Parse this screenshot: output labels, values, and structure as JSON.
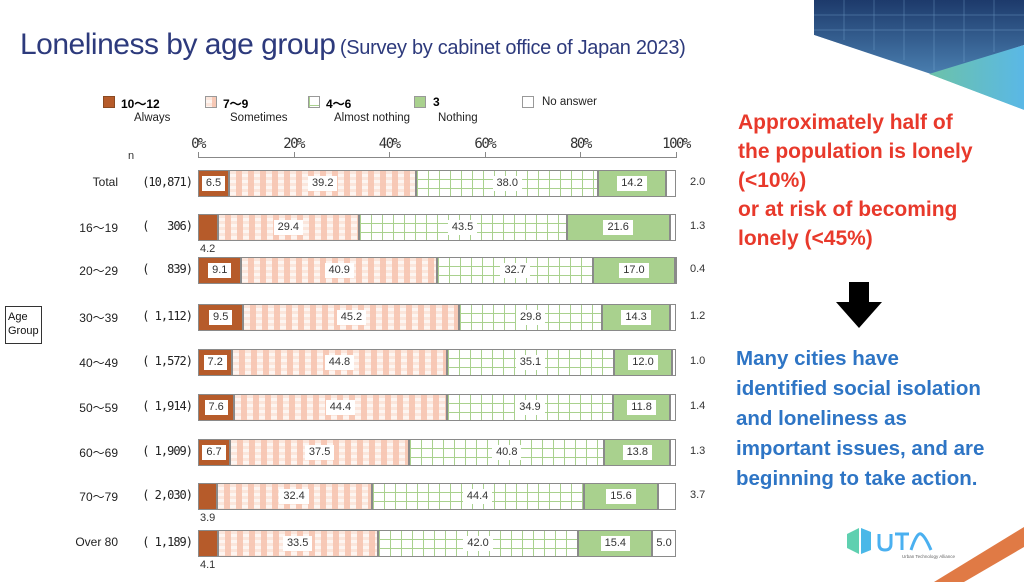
{
  "title": {
    "main": "Loneliness by age group",
    "sub": "(Survey by cabinet office of Japan 2023)"
  },
  "legend": [
    {
      "code": "10～12",
      "desc": "Always",
      "key": "always",
      "color": "#b65b2a"
    },
    {
      "code": "7～9",
      "desc": "Sometimes",
      "key": "sometimes",
      "color": "#f6c4b0"
    },
    {
      "code": "4～6",
      "desc": "Almost nothing",
      "key": "almost",
      "color": "#a9d18e"
    },
    {
      "code": "3",
      "desc": "Nothing",
      "key": "nothing",
      "color": "#a9d18e"
    },
    {
      "code": "",
      "desc": "No answer",
      "key": "noanswer",
      "color": "#ffffff"
    }
  ],
  "n_label": "n",
  "age_group_label": "Age Group",
  "chart_data": {
    "type": "bar",
    "orientation": "horizontal-stacked-100",
    "title": "Loneliness by age group",
    "xlabel": "",
    "ylabel": "Age Group",
    "xlim": [
      0,
      100
    ],
    "x_ticks": [
      "0%",
      "20%",
      "40%",
      "60%",
      "80%",
      "100%"
    ],
    "categories": [
      "Total",
      "16～19",
      "20～29",
      "30～39",
      "40～49",
      "50～59",
      "60～69",
      "70～79",
      "Over 80"
    ],
    "n": [
      "(10,871)",
      "(   306)",
      "(   839)",
      "( 1,112)",
      "( 1,572)",
      "( 1,914)",
      "( 1,909)",
      "( 2,030)",
      "( 1,189)"
    ],
    "series": [
      {
        "name": "10～12 Always",
        "key": "always",
        "values": [
          6.5,
          4.2,
          9.1,
          9.5,
          7.2,
          7.6,
          6.7,
          3.9,
          4.1
        ]
      },
      {
        "name": "7～9 Sometimes",
        "key": "sometimes",
        "values": [
          39.2,
          29.4,
          40.9,
          45.2,
          44.8,
          44.4,
          37.5,
          32.4,
          33.5
        ]
      },
      {
        "name": "4～6 Almost nothing",
        "key": "almost",
        "values": [
          38.0,
          43.5,
          32.7,
          29.8,
          35.1,
          34.9,
          40.8,
          44.4,
          42.0
        ]
      },
      {
        "name": "3 Nothing",
        "key": "nothing",
        "values": [
          14.2,
          21.6,
          17.0,
          14.3,
          12.0,
          11.8,
          13.8,
          15.6,
          15.4
        ]
      },
      {
        "name": "No answer",
        "key": "noanswer",
        "values": [
          2.0,
          1.3,
          0.4,
          1.2,
          1.0,
          1.4,
          1.3,
          3.7,
          5.0
        ]
      }
    ],
    "legend_position": "top",
    "grid": false
  },
  "callout_red": [
    "Approximately half of",
    "the population is lonely",
    "(<10%)",
    "or at risk of becoming",
    "lonely (<45%)"
  ],
  "callout_blue": [
    "Many cities have",
    "identified social isolation",
    "and loneliness as",
    "important issues, and are",
    "beginning to take action."
  ],
  "logo": {
    "name": "UTA",
    "tagline": "Urban Technology Alliance"
  }
}
